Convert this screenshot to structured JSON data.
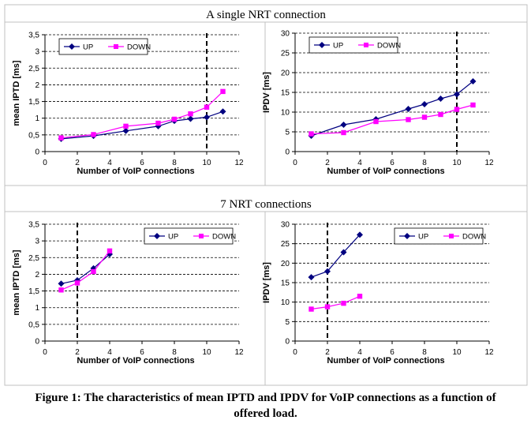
{
  "figure_caption": {
    "line1": "Figure 1: The characteristics of mean IPTD and IPDV for VoIP connections as a function  of",
    "line2": "offered load."
  },
  "sections": [
    {
      "title": "A single NRT connection"
    },
    {
      "title": "7 NRT connections"
    }
  ],
  "colors": {
    "up": "#000080",
    "down": "#ff00ff",
    "grid": "#000000",
    "frame": "#c0c0c0"
  },
  "chart_data": [
    {
      "type": "line",
      "section": "A single NRT connection",
      "xlabel": "Number of VoIP connections",
      "ylabel": "mean IPTD [ms]",
      "xlim": [
        0,
        12
      ],
      "xticks": [
        "0",
        "2",
        "4",
        "6",
        "8",
        "10",
        "12"
      ],
      "ylim": [
        0,
        3.5
      ],
      "yticks": [
        "0",
        "0,5",
        "1",
        "1,5",
        "2",
        "2,5",
        "3",
        "3,5"
      ],
      "grid": "horizontal dashed",
      "vline_x": 10,
      "legend_position": "top-left",
      "series": [
        {
          "name": "UP",
          "marker": "diamond",
          "x": [
            1,
            3,
            5,
            7,
            8,
            9,
            10,
            11
          ],
          "y": [
            0.38,
            0.47,
            0.62,
            0.76,
            0.92,
            0.98,
            1.03,
            1.2
          ]
        },
        {
          "name": "DOWN",
          "marker": "square",
          "x": [
            1,
            3,
            5,
            7,
            8,
            9,
            10,
            11
          ],
          "y": [
            0.41,
            0.51,
            0.76,
            0.85,
            0.97,
            1.13,
            1.33,
            1.8
          ]
        }
      ]
    },
    {
      "type": "line",
      "section": "A single NRT connection",
      "xlabel": "Number of VoIP connections",
      "ylabel": "IPDV [ms]",
      "xlim": [
        0,
        12
      ],
      "xticks": [
        "0",
        "2",
        "4",
        "6",
        "8",
        "10",
        "12"
      ],
      "ylim": [
        0,
        30
      ],
      "yticks": [
        "0",
        "5",
        "10",
        "15",
        "20",
        "25",
        "30"
      ],
      "grid": "horizontal dashed",
      "vline_x": 10,
      "legend_position": "top-left",
      "series": [
        {
          "name": "UP",
          "marker": "diamond",
          "x": [
            1,
            3,
            5,
            7,
            8,
            9,
            10,
            11
          ],
          "y": [
            4.0,
            6.8,
            8.2,
            10.8,
            12.0,
            13.4,
            14.5,
            17.8
          ]
        },
        {
          "name": "DOWN",
          "marker": "square",
          "x": [
            1,
            3,
            5,
            7,
            8,
            9,
            10,
            11
          ],
          "y": [
            4.5,
            4.8,
            7.6,
            8.1,
            8.7,
            9.4,
            10.7,
            11.8
          ]
        }
      ]
    },
    {
      "type": "line",
      "section": "7 NRT connections",
      "xlabel": "Number of VoIP connections",
      "ylabel": "mean IPTD [ms]",
      "xlim": [
        0,
        12
      ],
      "xticks": [
        "0",
        "2",
        "4",
        "6",
        "8",
        "10",
        "12"
      ],
      "ylim": [
        0,
        3.5
      ],
      "yticks": [
        "0",
        "0,5",
        "1",
        "1,5",
        "2",
        "2,5",
        "3",
        "3,5"
      ],
      "grid": "horizontal dashed",
      "vline_x": 2,
      "legend_position": "top-right",
      "series": [
        {
          "name": "UP",
          "marker": "diamond",
          "x": [
            1,
            2,
            3,
            4
          ],
          "y": [
            1.72,
            1.82,
            2.18,
            2.6
          ]
        },
        {
          "name": "DOWN",
          "marker": "square",
          "x": [
            1,
            2,
            3,
            4
          ],
          "y": [
            1.53,
            1.74,
            2.08,
            2.7
          ]
        }
      ]
    },
    {
      "type": "line",
      "section": "7 NRT connections",
      "xlabel": "Number of VoIP connections",
      "ylabel": "IPDV [ms]",
      "xlim": [
        0,
        12
      ],
      "xticks": [
        "0",
        "2",
        "4",
        "6",
        "8",
        "10",
        "12"
      ],
      "ylim": [
        0,
        30
      ],
      "yticks": [
        "0",
        "5",
        "10",
        "15",
        "20",
        "25",
        "30"
      ],
      "grid": "horizontal dashed",
      "vline_x": 2,
      "legend_position": "top-right",
      "series": [
        {
          "name": "UP",
          "marker": "diamond",
          "x": [
            1,
            2,
            3,
            4
          ],
          "y": [
            16.4,
            17.9,
            22.8,
            27.3
          ]
        },
        {
          "name": "DOWN",
          "marker": "square",
          "x": [
            1,
            2,
            3,
            4
          ],
          "y": [
            8.2,
            8.8,
            9.7,
            11.5
          ]
        }
      ]
    }
  ]
}
